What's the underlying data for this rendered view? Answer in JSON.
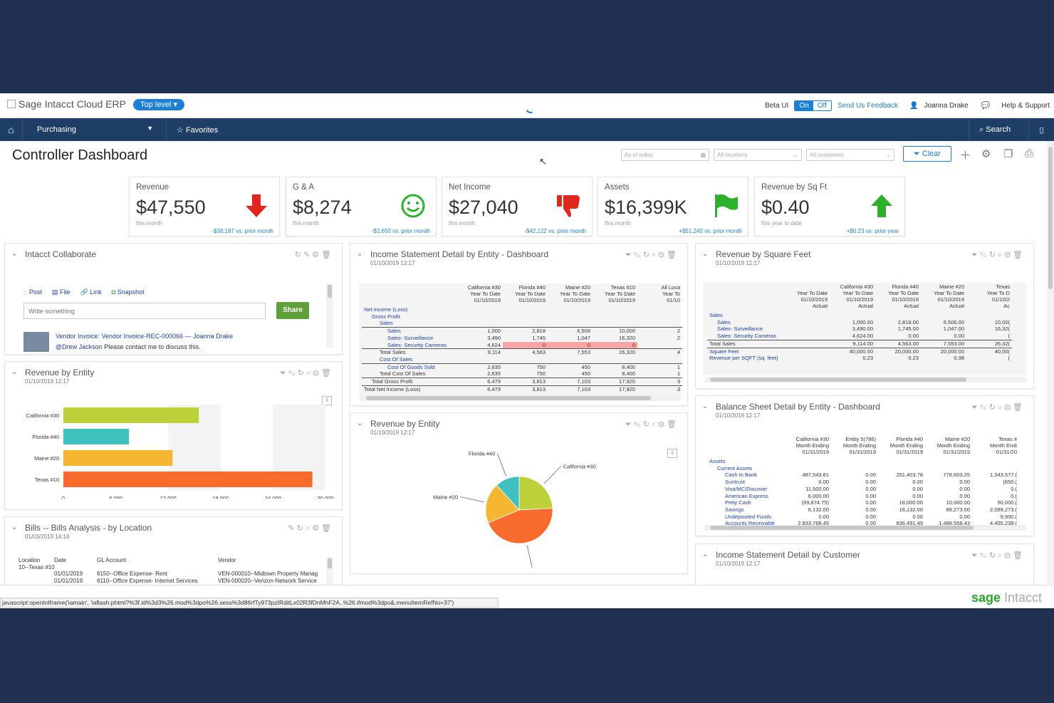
{
  "topbar": {
    "brand": "Sage Intacct Cloud ERP",
    "level": "Top level",
    "beta_label": "Beta UI",
    "on": "On",
    "off": "Off",
    "feedback": "Send Us Feedback",
    "user": "Joanna Drake",
    "help": "Help & Support"
  },
  "nav": {
    "module": "Purchasing",
    "favorites": "Favorites",
    "search": "Search"
  },
  "page": {
    "title": "Controller Dashboard"
  },
  "filters": {
    "date": "As of today",
    "locations": "All locations",
    "customers": "All customers",
    "clear": "Clear"
  },
  "kpis": [
    {
      "label": "Revenue",
      "value": "$47,550",
      "sub": "this month",
      "change": "-$38,187 vs. prior month"
    },
    {
      "label": "G & A",
      "value": "$8,274",
      "sub": "this month",
      "change": "-$2,650 vs. prior month"
    },
    {
      "label": "Net Income",
      "value": "$27,040",
      "sub": "this month",
      "change": "-$42,122 vs. prior month"
    },
    {
      "label": "Assets",
      "value": "$16,399K",
      "sub": "this month",
      "change": "+$51,240 vs. prior month"
    },
    {
      "label": "Revenue by Sq Ft",
      "value": "$0.40",
      "sub": "this year to date",
      "change": "+$0.23 vs. prior year"
    }
  ],
  "collaborate": {
    "title": "Intacct Collaborate",
    "post": "Post",
    "file": "File",
    "link": "Link",
    "snapshot": "Snapshot",
    "placeholder": "Write something",
    "share": "Share",
    "item_title": "Vendor Invoice: Vendor Invoice-REC-000066",
    "item_author": "— Joanna Drake",
    "mention": "@Drew Jackson",
    "item_text": "Please contact me to discuss this."
  },
  "rev_entity_left": {
    "title": "Revenue by Entity",
    "date": "01/10/2019 12:17",
    "chart_data": {
      "type": "bar",
      "categories": [
        "California #30",
        "Florida #40",
        "Maine #20",
        "Texas #10"
      ],
      "values": [
        15500,
        7500,
        12500,
        28500
      ],
      "colors": [
        "#bcd03a",
        "#3fc1c0",
        "#f5b731",
        "#f96a2d"
      ],
      "xlim": [
        0,
        30000
      ],
      "xticks": [
        "0",
        "6,000",
        "12,000",
        "18,000",
        "24,000",
        "30,000"
      ]
    }
  },
  "bills": {
    "title": "Bills -- Bills Analysis - by Location",
    "date": "01/03/2019 14:18",
    "cols": [
      "Location",
      "Date",
      "GL Account",
      "Vendor"
    ],
    "group": "10--Texas #10",
    "rows": [
      [
        "",
        "01/01/2019",
        "6150--Office Expense- Rent",
        "VEN-000010--Midtown Property Manag"
      ],
      [
        "",
        "01/01/2019",
        "6110--Office Expense- Internet Services",
        "VEN-000020--Verizon-Network Service"
      ]
    ]
  },
  "income_entity": {
    "title": "Income Statement Detail by Entity - Dashboard",
    "date": "01/10/2019 12:17",
    "headers": [
      [
        "California #30",
        "Florida #40",
        "Maine #20",
        "Texas #10",
        "All Loca"
      ],
      [
        "Year To Date",
        "Year To Date",
        "Year To Date",
        "Year To Date",
        "Year To"
      ],
      [
        "01/10/2019",
        "01/10/2019",
        "01/10/2019",
        "01/10/2019",
        "01/10"
      ]
    ],
    "rows": [
      {
        "label": "Net Income (Loss)",
        "v": [
          "",
          "",
          "",
          "",
          ""
        ]
      },
      {
        "label": "Gross Profit",
        "v": [
          "",
          "",
          "",
          "",
          ""
        ]
      },
      {
        "label": "Sales",
        "v": [
          "",
          "",
          "",
          "",
          ""
        ]
      },
      {
        "label": "Sales",
        "v": [
          "1,000",
          "2,818",
          "6,506",
          "10,000",
          "2"
        ]
      },
      {
        "label": "Sales- Surveillance",
        "v": [
          "3,490",
          "1,745",
          "1,047",
          "16,320",
          "2"
        ]
      },
      {
        "label": "Sales- Security Cameras",
        "v": [
          "4,624",
          "0",
          "0",
          "0",
          ""
        ]
      },
      {
        "label": "Total Sales",
        "v": [
          "9,114",
          "4,563",
          "7,553",
          "26,320",
          "4"
        ]
      },
      {
        "label": "Cost Of Sales",
        "v": [
          "",
          "",
          "",
          "",
          ""
        ]
      },
      {
        "label": "Cost Of Goods Sold",
        "v": [
          "2,635",
          "750",
          "450",
          "8,400",
          "1"
        ]
      },
      {
        "label": "Total Cost Of Sales",
        "v": [
          "2,635",
          "750",
          "450",
          "8,400",
          "1"
        ]
      },
      {
        "label": "Total Gross Profit",
        "v": [
          "6,479",
          "3,813",
          "7,103",
          "17,920",
          "3"
        ]
      },
      {
        "label": "Total Net Income (Loss)",
        "v": [
          "6,479",
          "3,813",
          "7,103",
          "17,920",
          "3"
        ]
      }
    ]
  },
  "rev_entity_mid": {
    "title": "Revenue by Entity",
    "date": "01/10/2019 12:17",
    "chart_data": {
      "type": "pie",
      "categories": [
        "California #30",
        "Texas #10",
        "Maine #20",
        "Florida #40"
      ],
      "values": [
        15500,
        28500,
        12500,
        7500
      ],
      "colors": [
        "#bcd03a",
        "#f96a2d",
        "#f5b731",
        "#3fc1c0"
      ]
    }
  },
  "rev_sqft": {
    "title": "Revenue by Square Feet",
    "date": "01/10/2019 12:17",
    "headers": [
      [
        "",
        "California #30",
        "Florida #40",
        "Maine #20",
        "Texas"
      ],
      [
        "Year To Date",
        "Year To Date",
        "Year To Date",
        "Year To Date",
        "Year To D"
      ],
      [
        "01/10/2019",
        "01/10/2019",
        "01/10/2019",
        "01/10/2019",
        "01/10/2"
      ],
      [
        "Actual",
        "Actual",
        "Actual",
        "Actual",
        "Ac"
      ]
    ],
    "rows": [
      {
        "label": "Sales",
        "v": [
          "",
          "",
          "",
          "",
          ""
        ]
      },
      {
        "label": "Sales",
        "v": [
          "",
          "1,000.00",
          "2,818.00",
          "6,506.00",
          "10,00("
        ]
      },
      {
        "label": "Sales- Surveillance",
        "v": [
          "",
          "3,490.00",
          "1,745.00",
          "1,047.00",
          "16,32("
        ]
      },
      {
        "label": "Sales- Security Cameras",
        "v": [
          "",
          "4,624.00",
          "0.00",
          "0.00",
          "("
        ]
      },
      {
        "label": "Total Sales",
        "v": [
          "",
          "9,114.00",
          "4,563.00",
          "7,553.00",
          "26,32("
        ]
      },
      {
        "label": "Square Feet",
        "v": [
          "",
          "40,000.00",
          "20,000.00",
          "20,000.00",
          "40,00("
        ]
      },
      {
        "label": "Revenue per SQFT (sq. feet)",
        "v": [
          "",
          "0.23",
          "0.23",
          "0.38",
          "("
        ]
      }
    ]
  },
  "balance": {
    "title": "Balance Sheet Detail by Entity - Dashboard",
    "date": "01/10/2019 12:17",
    "headers": [
      [
        "California #30",
        "Entity 5(786)",
        "Florida #40",
        "Maine #20",
        "Texas #"
      ],
      [
        "Month Ending",
        "Month Ending",
        "Month Ending",
        "Month Ending",
        "Month Endi"
      ],
      [
        "01/31/2019",
        "01/31/2019",
        "01/31/2019",
        "01/31/2019",
        "01/31/20"
      ]
    ],
    "rows": [
      {
        "label": "Assets",
        "v": [
          "",
          "",
          "",
          "",
          ""
        ]
      },
      {
        "label": "Current Assets",
        "v": [
          "",
          "",
          "",
          "",
          ""
        ]
      },
      {
        "label": "Cash In Bank",
        "v": [
          "487,543.81",
          "0.00",
          "251,403.78",
          "778,603.25",
          "1,343,577.("
        ]
      },
      {
        "label": "Suntrust",
        "v": [
          "0.00",
          "0.00",
          "0.00",
          "0.00",
          "(650.("
        ]
      },
      {
        "label": "Visa/MC/Discover",
        "v": [
          "11,500.00",
          "0.00",
          "0.00",
          "0.00",
          "0.("
        ]
      },
      {
        "label": "American Express",
        "v": [
          "6,000.00",
          "0.00",
          "0.00",
          "0.00",
          "0.("
        ]
      },
      {
        "label": "Petty Cash",
        "v": [
          "(69,874.75)",
          "0.00",
          "18,000.00",
          "10,000.00",
          "50,000.("
        ]
      },
      {
        "label": "Savings",
        "v": [
          "6,132.00",
          "0.00",
          "16,132.00",
          "89,273.00",
          "2,089,273.("
        ]
      },
      {
        "label": "Undeposited Funds",
        "v": [
          "0.00",
          "0.00",
          "0.00",
          "0.00",
          "9,900.("
        ]
      },
      {
        "label": "Accounts Receivable",
        "v": [
          "2,833,768.45",
          "0.00",
          "836,491.49",
          "1,488,558.43",
          "4,455,239.("
        ]
      }
    ]
  },
  "income_customer": {
    "title": "Income Statement Detail by Customer",
    "date": "01/10/2019 12:17"
  },
  "status_url": "javascript:openInIframe('iamain', 'iaflash.phtml?%3f.id%3d3%26.mod%3dpo%26.sess%3d86rfTy973pzIRditLx02R3fDnMhF2A..%26.ifmod%3dpo&.menuItemRefNo=37')",
  "footer_brand": {
    "a": "sage",
    "b": " Intacct"
  }
}
